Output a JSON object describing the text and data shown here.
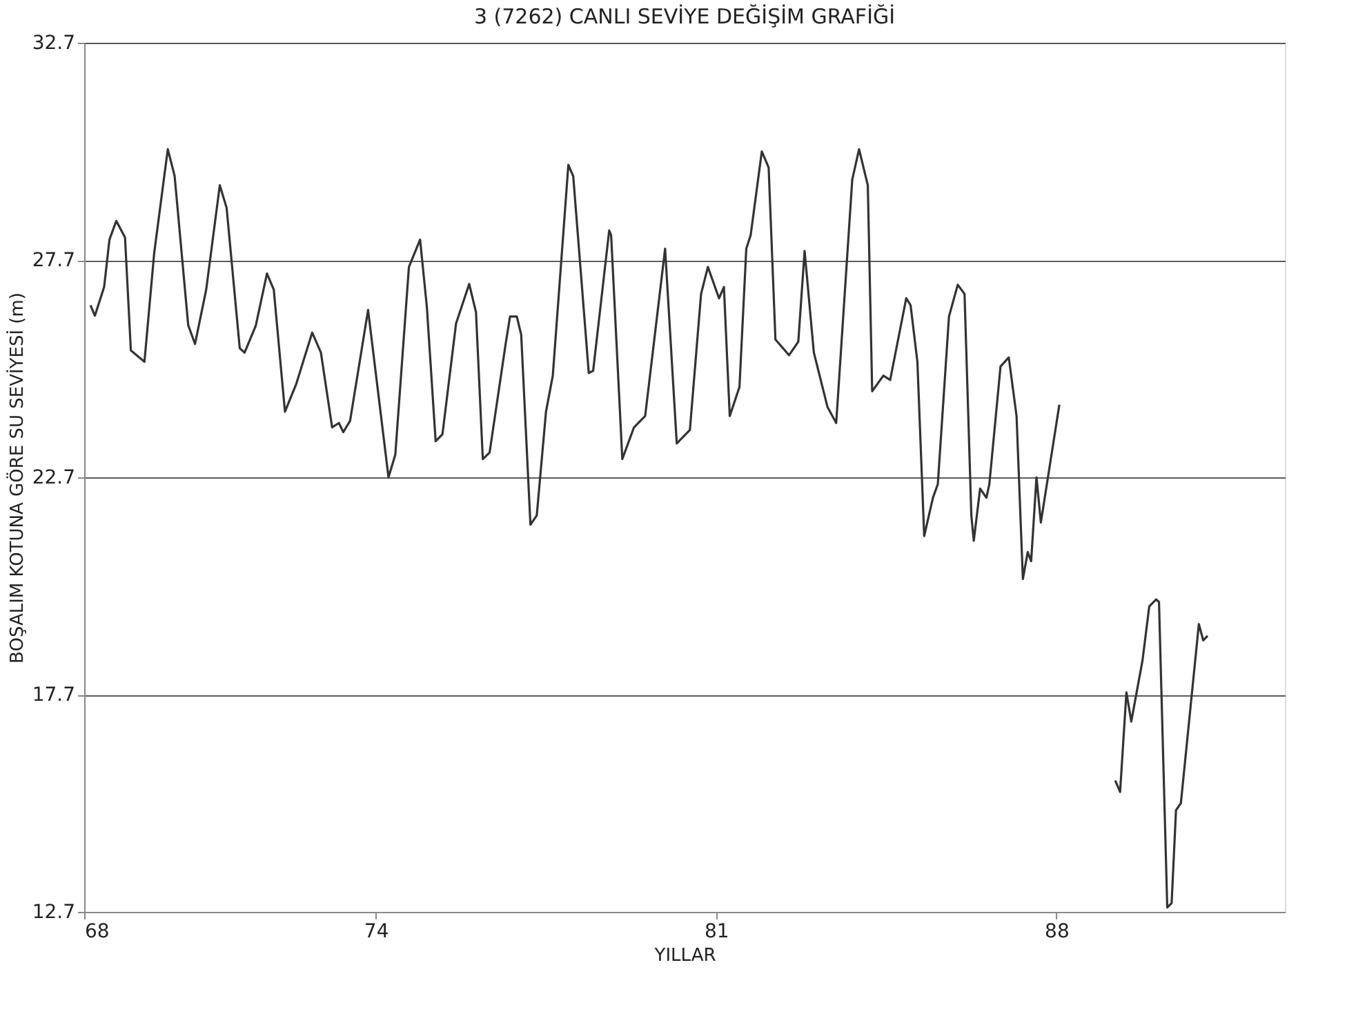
{
  "chart_data": {
    "type": "line",
    "title": "3 (7262) CANLI SEVİYE DEĞİŞİM GRAFİĞİ",
    "xlabel": "YILLAR",
    "ylabel": "BOŞALIM KOTUNA GÖRE SU SEVİYESİ (m)",
    "x": [
      68.13,
      68.22,
      68.41,
      68.52,
      68.66,
      68.84,
      68.96,
      69.24,
      69.44,
      69.72,
      69.86,
      70.14,
      70.28,
      70.51,
      70.79,
      70.93,
      71.2,
      71.3,
      71.53,
      71.76,
      71.9,
      72.13,
      72.36,
      72.69,
      72.87,
      73.1,
      73.24,
      73.33,
      73.47,
      73.84,
      74.26,
      74.4,
      74.68,
      74.91,
      75.05,
      75.23,
      75.37,
      75.65,
      75.92,
      76.06,
      76.2,
      76.34,
      76.67,
      76.76,
      76.9,
      76.99,
      77.18,
      77.31,
      77.5,
      77.64,
      77.96,
      78.06,
      78.38,
      78.47,
      78.8,
      78.84,
      79.07,
      79.31,
      79.54,
      79.95,
      80.19,
      80.46,
      80.69,
      80.83,
      81.06,
      81.16,
      81.28,
      81.48,
      81.62,
      81.71,
      81.94,
      82.08,
      82.22,
      82.5,
      82.69,
      82.82,
      83.01,
      83.29,
      83.47,
      83.8,
      83.94,
      84.12,
      84.21,
      84.44,
      84.58,
      84.91,
      85.0,
      85.14,
      85.28,
      85.46,
      85.56,
      85.79,
      85.97,
      86.11,
      86.25,
      86.3,
      86.43,
      86.56,
      86.62,
      86.85,
      87.02,
      87.18,
      87.31,
      87.41,
      87.48,
      87.59,
      87.68,
      88.06,
      88.6,
      89.21,
      89.31,
      89.44,
      89.54,
      89.77,
      89.91,
      90.05,
      90.11,
      90.28,
      90.37,
      90.46,
      90.56,
      90.93,
      91.02,
      91.11
    ],
    "series": [
      {
        "color": "#333333",
        "values": [
          26.66,
          26.42,
          27.08,
          28.17,
          28.6,
          28.22,
          25.62,
          25.36,
          27.86,
          30.25,
          29.64,
          26.2,
          25.77,
          27.02,
          29.42,
          28.9,
          25.67,
          25.57,
          26.19,
          27.39,
          27.02,
          24.21,
          24.84,
          26.03,
          25.57,
          23.85,
          23.95,
          23.74,
          24.0,
          26.55,
          22.7,
          23.22,
          27.54,
          28.17,
          26.61,
          23.53,
          23.69,
          26.24,
          27.15,
          26.5,
          23.12,
          23.27,
          25.77,
          26.4,
          26.4,
          25.98,
          21.61,
          21.82,
          24.21,
          25.04,
          29.89,
          29.63,
          25.1,
          25.15,
          28.38,
          28.27,
          23.12,
          23.85,
          24.11,
          27.96,
          23.48,
          23.79,
          26.92,
          27.54,
          26.82,
          27.08,
          24.11,
          24.78,
          27.96,
          28.27,
          30.2,
          29.83,
          25.87,
          25.51,
          25.82,
          27.91,
          25.57,
          24.32,
          23.95,
          29.55,
          30.25,
          29.42,
          24.68,
          25.04,
          24.94,
          26.82,
          26.66,
          25.36,
          21.35,
          22.23,
          22.54,
          26.4,
          27.13,
          26.92,
          21.82,
          21.24,
          22.44,
          22.23,
          22.54,
          25.25,
          25.46,
          24.11,
          20.36,
          20.98,
          20.77,
          22.7,
          21.66,
          24.37,
          null,
          15.72,
          15.46,
          17.75,
          17.08,
          18.48,
          19.73,
          19.89,
          19.83,
          12.8,
          12.9,
          15.04,
          15.2,
          19.32,
          18.95,
          19.05
        ]
      }
    ],
    "xlim": [
      68,
      92.7
    ],
    "xticks": [
      68,
      74,
      81,
      88
    ],
    "ylim": [
      12.7,
      32.7
    ],
    "yticks": [
      12.7,
      17.7,
      22.7,
      27.7,
      32.7
    ],
    "grid": "y",
    "marker": "none",
    "line_style": "solid"
  }
}
